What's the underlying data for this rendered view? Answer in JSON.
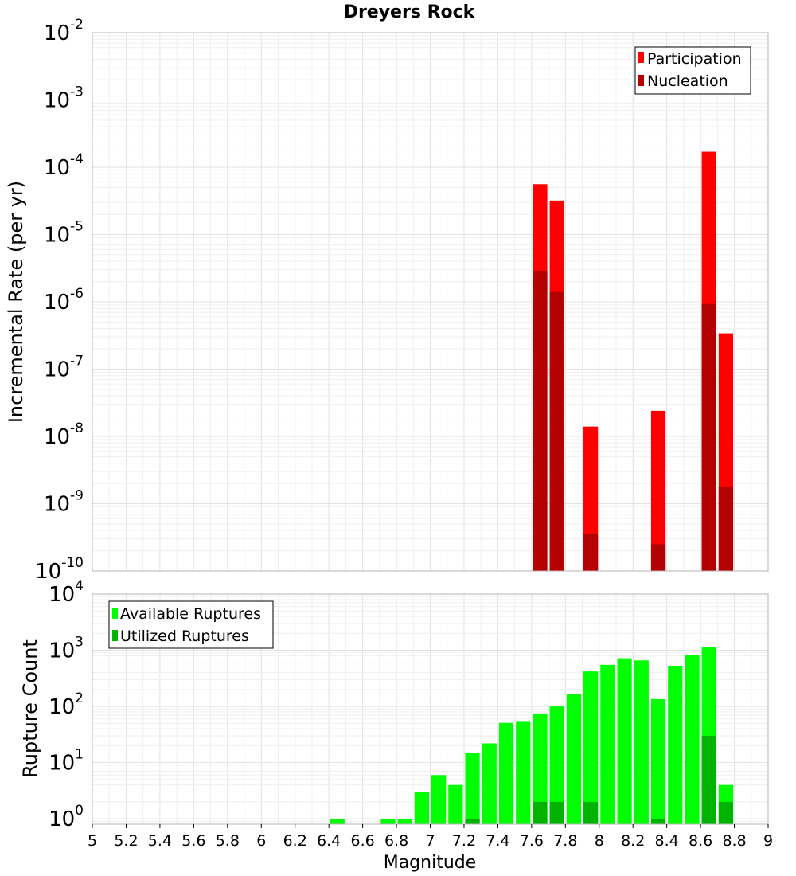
{
  "chart_data": [
    {
      "type": "bar",
      "title": "Dreyers Rock",
      "xlabel": "",
      "ylabel": "Incremental Rate (per yr)",
      "y_scale": "log",
      "ylim": [
        1e-10,
        0.01
      ],
      "xlim": [
        5,
        9
      ],
      "bar_width": 0.1,
      "y_ticks": [
        {
          "base": "10",
          "exp": "-10"
        },
        {
          "base": "10",
          "exp": "-9"
        },
        {
          "base": "10",
          "exp": "-8"
        },
        {
          "base": "10",
          "exp": "-7"
        },
        {
          "base": "10",
          "exp": "-6"
        },
        {
          "base": "10",
          "exp": "-5"
        },
        {
          "base": "10",
          "exp": "-4"
        },
        {
          "base": "10",
          "exp": "-3"
        },
        {
          "base": "10",
          "exp": "-2"
        }
      ],
      "legend_position": "top-right",
      "grid": true,
      "series": [
        {
          "name": "Participation",
          "color": "#ff0000",
          "x": [
            7.65,
            7.75,
            7.95,
            8.35,
            8.65,
            8.75
          ],
          "values": [
            5.6e-05,
            3.2e-05,
            1.4e-08,
            2.4e-08,
            0.00017,
            3.4e-07
          ]
        },
        {
          "name": "Nucleation",
          "color": "#b30000",
          "x": [
            7.65,
            7.75,
            7.95,
            8.35,
            8.65,
            8.75
          ],
          "values": [
            2.9e-06,
            1.4e-06,
            3.6e-10,
            2.5e-10,
            9.3e-07,
            1.8e-09
          ]
        }
      ]
    },
    {
      "type": "bar",
      "title": "",
      "xlabel": "Magnitude",
      "ylabel": "Rupture Count",
      "y_scale": "log",
      "ylim": [
        0.8,
        10000
      ],
      "xlim": [
        5,
        9
      ],
      "bar_width": 0.1,
      "y_ticks": [
        {
          "base": "10",
          "exp": "0"
        },
        {
          "base": "10",
          "exp": "1"
        },
        {
          "base": "10",
          "exp": "2"
        },
        {
          "base": "10",
          "exp": "3"
        },
        {
          "base": "10",
          "exp": "4"
        }
      ],
      "x_ticks": [
        "5",
        "5.2",
        "5.4",
        "5.6",
        "5.8",
        "6",
        "6.2",
        "6.4",
        "6.6",
        "6.8",
        "7",
        "7.2",
        "7.4",
        "7.6",
        "7.8",
        "8",
        "8.2",
        "8.4",
        "8.6",
        "8.8",
        "9"
      ],
      "legend_position": "top-left",
      "grid": true,
      "series": [
        {
          "name": "Available Ruptures",
          "color": "#00ff00",
          "x": [
            6.45,
            6.75,
            6.85,
            6.95,
            7.05,
            7.15,
            7.25,
            7.35,
            7.45,
            7.55,
            7.65,
            7.75,
            7.85,
            7.95,
            8.05,
            8.15,
            8.25,
            8.35,
            8.45,
            8.55,
            8.65,
            8.75
          ],
          "values": [
            1,
            1,
            1,
            3,
            6,
            4,
            15,
            22,
            51,
            55,
            75,
            100,
            165,
            420,
            550,
            720,
            660,
            135,
            530,
            810,
            1150,
            4
          ]
        },
        {
          "name": "Utilized Ruptures",
          "color": "#00b300",
          "x": [
            7.25,
            7.65,
            7.75,
            7.95,
            8.35,
            8.65,
            8.75
          ],
          "values": [
            1,
            2,
            2,
            2,
            1,
            30,
            2
          ]
        }
      ]
    }
  ]
}
